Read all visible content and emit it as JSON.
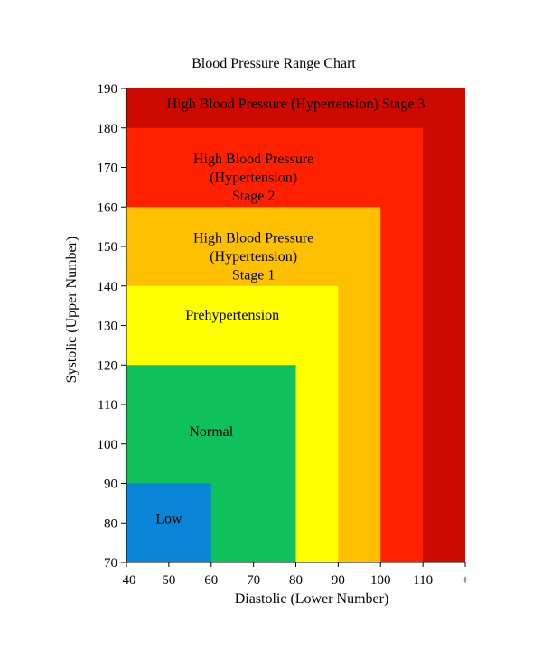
{
  "chart_data": {
    "type": "heatmap",
    "title": "Blood Pressure Range Chart",
    "xlabel": "Diastolic (Lower Number)",
    "ylabel": "Systolic (Upper Number)",
    "x_ticks": [
      "40",
      "50",
      "60",
      "70",
      "80",
      "90",
      "100",
      "110",
      "+"
    ],
    "y_ticks": [
      "70",
      "80",
      "90",
      "100",
      "110",
      "120",
      "130",
      "140",
      "150",
      "160",
      "170",
      "180",
      "190"
    ],
    "xlim": [
      40,
      120
    ],
    "ylim": [
      70,
      190
    ],
    "grid": false,
    "zones": [
      {
        "name": "stage3",
        "label": [
          "High Blood Pressure (Hypertension) Stage 3"
        ],
        "x_max": 120,
        "y_max": 190,
        "color": "#cc0a00",
        "label_at": [
          80,
          185
        ]
      },
      {
        "name": "stage2",
        "label": [
          "High Blood Pressure",
          "(Hypertension)",
          "Stage 2"
        ],
        "x_max": 110,
        "y_max": 180,
        "color": "#ff2000",
        "label_at": [
          70,
          171
        ]
      },
      {
        "name": "stage1",
        "label": [
          "High Blood Pressure",
          "(Hypertension)",
          "Stage 1"
        ],
        "x_max": 100,
        "y_max": 160,
        "color": "#ffc000",
        "label_at": [
          70,
          151
        ]
      },
      {
        "name": "prehypertension",
        "label": [
          "Prehypertension"
        ],
        "x_max": 90,
        "y_max": 140,
        "color": "#ffff00",
        "label_at": [
          65,
          131.5
        ]
      },
      {
        "name": "normal",
        "label": [
          "Normal"
        ],
        "x_max": 80,
        "y_max": 120,
        "color": "#0fc15a",
        "label_at": [
          60,
          102
        ]
      },
      {
        "name": "low",
        "label": [
          "Low"
        ],
        "x_max": 60,
        "y_max": 90,
        "color": "#0a84d6",
        "label_at": [
          50,
          80
        ]
      }
    ]
  }
}
